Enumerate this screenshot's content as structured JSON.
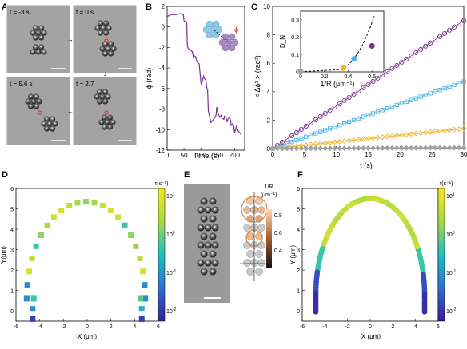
{
  "panelA": {
    "label": "A",
    "frames": [
      {
        "time": "t = -3 s"
      },
      {
        "time": "t = 0 s"
      },
      {
        "time": "t = 5.6 s"
      },
      {
        "time": "t = 2.7"
      }
    ]
  },
  "panelB": {
    "label": "B",
    "xlabel": "Time (s)",
    "ylabel": "ϕ (rad)",
    "phi_symbol": "ϕ",
    "xlim": [
      0,
      230
    ],
    "ylim": [
      -12,
      2
    ],
    "xticks": [
      "0",
      "50",
      "100",
      "150",
      "200"
    ],
    "yticks": [
      "2",
      "0",
      "-2",
      "-4",
      "-6",
      "-8",
      "-10",
      "-12"
    ],
    "line_color": "#7b3294"
  },
  "panelC": {
    "label": "C",
    "xlabel": "t (s)",
    "ylabel": "< Δϕ² > (rad²)",
    "xlim": [
      0,
      30
    ],
    "ylim": [
      0,
      10
    ],
    "xticks": [
      "0",
      "5",
      "10",
      "15",
      "20",
      "25",
      "30"
    ],
    "yticks": [
      "0",
      "2",
      "4",
      "6",
      "8",
      "10"
    ],
    "inset_xlabel": "1/R (µm⁻¹)",
    "inset_ylabel": "D_N",
    "inset_xticks": [
      "0",
      "0.2",
      "0.4",
      "0.6"
    ],
    "inset_yticks": [
      "0",
      "0.1",
      "0.2",
      "0.3"
    ]
  },
  "chart_data": [
    {
      "type": "line",
      "panel": "B",
      "xlabel": "Time (s)",
      "ylabel": "ϕ (rad)",
      "xlim": [
        0,
        230
      ],
      "ylim": [
        -12,
        2
      ],
      "series": [
        {
          "x": [
            0,
            5,
            10,
            25,
            40,
            48,
            50,
            58,
            60,
            63,
            70,
            75,
            78,
            80,
            85,
            88,
            95,
            100,
            102,
            108,
            110,
            115,
            118,
            120,
            122,
            128,
            130,
            135,
            140,
            145,
            147,
            150,
            152,
            156,
            160,
            163,
            168,
            170,
            175,
            178,
            180,
            185,
            188,
            190,
            195,
            198,
            200,
            203,
            205,
            210,
            215,
            220
          ],
          "y": [
            1.0,
            1.1,
            1.2,
            1.2,
            1.3,
            1.2,
            0.6,
            0.4,
            -1.9,
            -2.1,
            -2.3,
            -2.4,
            -3.0,
            -2.8,
            -2.9,
            -3.4,
            -3.6,
            -5.4,
            -5.6,
            -4.8,
            -5.0,
            -5.2,
            -6.0,
            -6.1,
            -8.2,
            -9.0,
            -9.3,
            -9.1,
            -8.9,
            -8.6,
            -7.8,
            -8.3,
            -8.5,
            -8.8,
            -8.6,
            -8.9,
            -9.0,
            -8.7,
            -8.9,
            -9.2,
            -9.0,
            -8.8,
            -9.1,
            -9.6,
            -9.4,
            -9.7,
            -10.3,
            -10.0,
            -9.7,
            -10.1,
            -10.3,
            -10.5
          ]
        }
      ]
    },
    {
      "type": "line",
      "panel": "C",
      "xlabel": "t (s)",
      "ylabel": "< Δϕ² > (rad²)",
      "xlim": [
        0,
        30
      ],
      "ylim": [
        0,
        10
      ],
      "series": [
        {
          "color": "#7b3294",
          "marker": "circle",
          "slope": 0.3,
          "curve": 0.0
        },
        {
          "color": "#4fb3e8",
          "marker": "square",
          "slope": 0.157,
          "curve": 0.0
        },
        {
          "color": "#f0b428",
          "marker": "diamond",
          "slope": 0.047,
          "curve": 0.0
        },
        {
          "color": "#a0a0a0",
          "marker": "diamond",
          "slope": 0.002,
          "curve": 0.0
        }
      ]
    },
    {
      "type": "scatter",
      "panel": "C-inset",
      "xlabel": "1/R (µm⁻¹)",
      "ylabel": "D_N",
      "xlim": [
        0,
        0.7
      ],
      "ylim": [
        0,
        0.35
      ],
      "points": [
        {
          "x": 0.0,
          "y": 0.001,
          "color": "#a0a0a0"
        },
        {
          "x": 0.36,
          "y": 0.022,
          "color": "#f0b428"
        },
        {
          "x": 0.45,
          "y": 0.075,
          "color": "#4fb3e8"
        },
        {
          "x": 0.6,
          "y": 0.15,
          "color": "#7b3294"
        }
      ]
    }
  ],
  "panelD": {
    "label": "D",
    "xlabel": "X (μm)",
    "ylabel": "Y(μm)",
    "cbar_label": "τ(s⁻¹)",
    "xticks": [
      "-6",
      "-4",
      "-2",
      "0",
      "2",
      "4",
      "6"
    ],
    "yticks": [
      "0",
      "1",
      "2",
      "3",
      "4",
      "5",
      "6"
    ],
    "cbar_ticks": [
      {
        "base": "10",
        "exp": "1"
      },
      {
        "base": "10",
        "exp": "0"
      },
      {
        "base": "10",
        "exp": "-1"
      },
      {
        "base": "10",
        "exp": "-2"
      }
    ]
  },
  "panelE": {
    "label": "E",
    "cbar_label": "1/R",
    "cbar_units": "(µm⁻¹)",
    "cbar_ticks": [
      "0.8",
      "0.6",
      "0.4"
    ]
  },
  "panelF": {
    "label": "F",
    "xlabel": "X (μm)",
    "ylabel": "Y (μm)",
    "cbar_label": "τ(s⁻¹)",
    "xticks": [
      "-6",
      "-4",
      "-2",
      "0",
      "2",
      "4",
      "6"
    ],
    "yticks": [
      "0",
      "1",
      "2",
      "3",
      "4",
      "5",
      "6"
    ],
    "cbar_ticks": [
      {
        "base": "10",
        "exp": "1"
      },
      {
        "base": "10",
        "exp": "0"
      },
      {
        "base": "10",
        "exp": "-1"
      },
      {
        "base": "10",
        "exp": "-2"
      }
    ]
  }
}
